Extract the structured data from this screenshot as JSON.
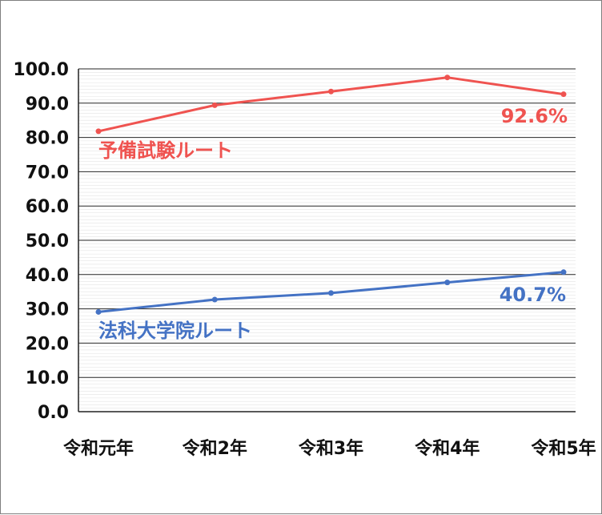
{
  "chart_data": {
    "type": "line",
    "categories": [
      "令和元年",
      "令和2年",
      "令和3年",
      "令和4年",
      "令和5年"
    ],
    "ylim": [
      0,
      100
    ],
    "ytick_labels": [
      "0.0",
      "10.0",
      "20.0",
      "30.0",
      "40.0",
      "50.0",
      "60.0",
      "70.0",
      "80.0",
      "90.0",
      "100.0"
    ],
    "grid": true,
    "series": [
      {
        "name": "予備試験ルート",
        "values": [
          81.8,
          89.4,
          93.4,
          97.5,
          92.6
        ],
        "color": "#ef5350",
        "end_label": "92.6%"
      },
      {
        "name": "法科大学院ルート",
        "values": [
          29.1,
          32.7,
          34.6,
          37.7,
          40.7
        ],
        "color": "#4472c4",
        "end_label": "40.7%"
      }
    ]
  }
}
